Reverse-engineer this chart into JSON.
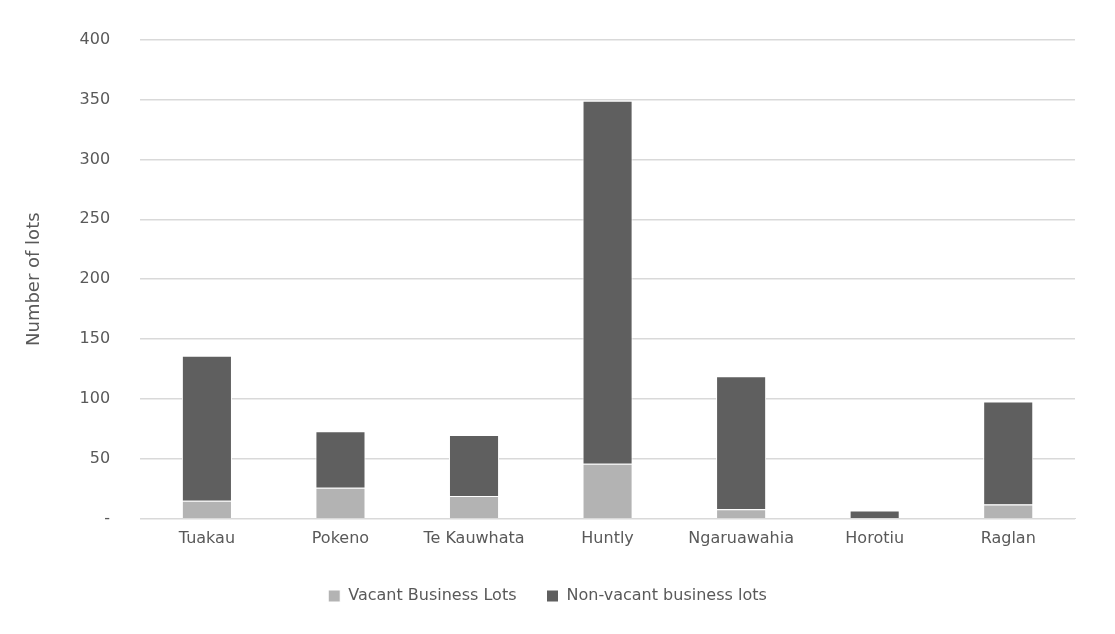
{
  "chart_data": {
    "type": "bar",
    "stacked": true,
    "ylabel": "Number of lots",
    "categories": [
      "Tuakau",
      "Pokeno",
      "Te Kauwhata",
      "Huntly",
      "Ngaruawahia",
      "Horotiu",
      "Raglan"
    ],
    "series": [
      {
        "name": "Vacant Business Lots",
        "color": "#b3b3b3",
        "values": [
          15,
          26,
          19,
          46,
          8,
          0,
          12
        ]
      },
      {
        "name": "Non-vacant business lots",
        "color": "#5f5f5f",
        "values": [
          121,
          47,
          51,
          303,
          111,
          7,
          86
        ]
      }
    ],
    "ylim": [
      0,
      400
    ],
    "yticks": [
      {
        "value": 0,
        "label": "-"
      },
      50,
      100,
      150,
      200,
      250,
      300,
      350,
      400
    ],
    "grid": "y",
    "legend": "bottom"
  }
}
